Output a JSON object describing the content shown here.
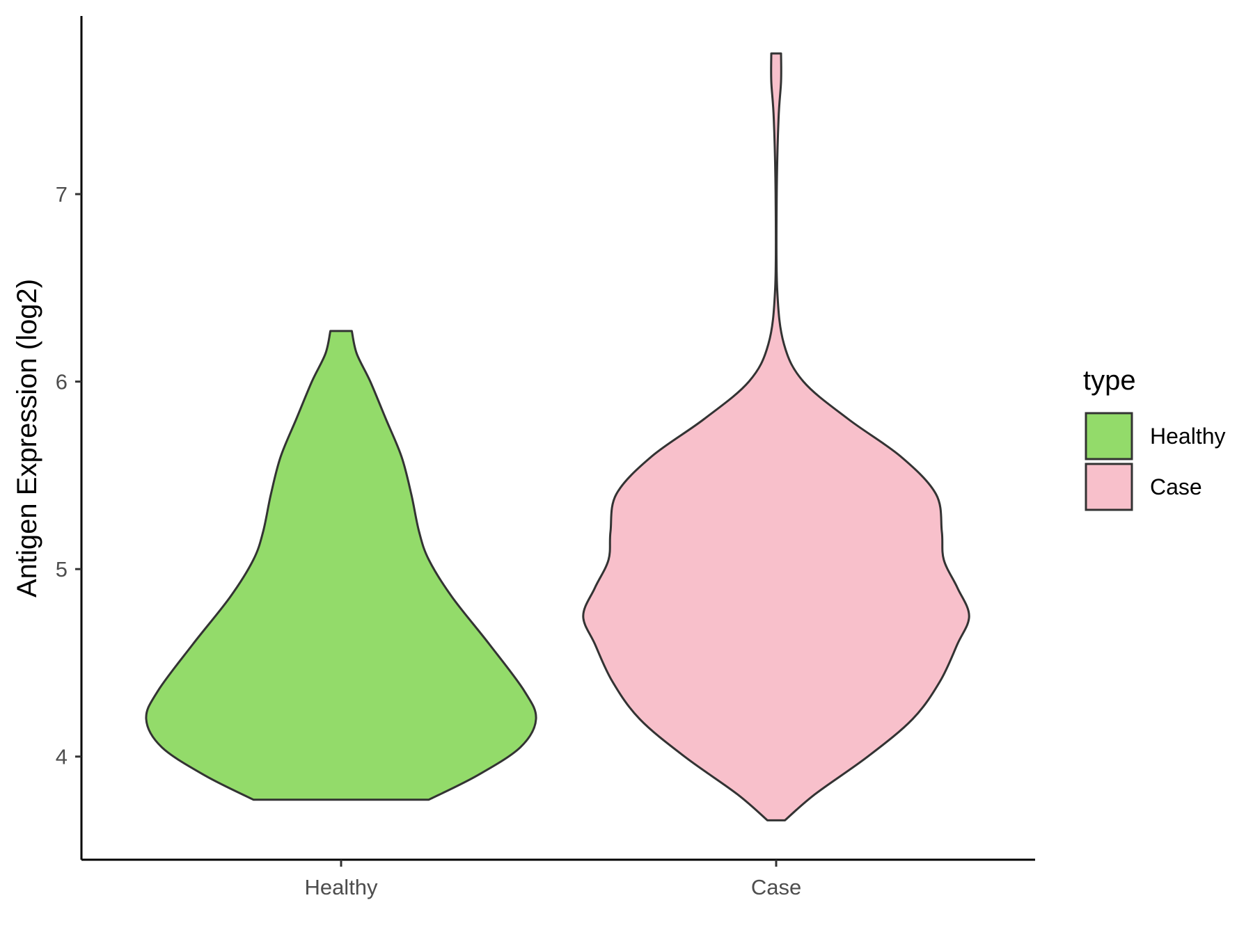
{
  "chart_data": {
    "type": "violin",
    "title": "",
    "xlabel": "",
    "ylabel": "Antigen Expression (log2)",
    "ylim": [
      3.45,
      7.95
    ],
    "yticks": [
      4,
      5,
      6,
      7
    ],
    "categories": [
      "Healthy",
      "Case"
    ],
    "grid": false,
    "legend": {
      "title": "type",
      "position": "right",
      "entries": [
        {
          "label": "Healthy",
          "color": "#93DB6A"
        },
        {
          "label": "Case",
          "color": "#F8C0CB"
        }
      ]
    },
    "series": [
      {
        "category": "Healthy",
        "color": "#93DB6A",
        "min": 3.77,
        "max": 6.27,
        "density_profile": [
          [
            3.77,
            0.45
          ],
          [
            3.9,
            0.7
          ],
          [
            4.05,
            0.92
          ],
          [
            4.2,
            1.0
          ],
          [
            4.35,
            0.94
          ],
          [
            4.6,
            0.76
          ],
          [
            4.85,
            0.57
          ],
          [
            5.05,
            0.45
          ],
          [
            5.2,
            0.4
          ],
          [
            5.4,
            0.36
          ],
          [
            5.6,
            0.31
          ],
          [
            5.8,
            0.23
          ],
          [
            6.0,
            0.15
          ],
          [
            6.15,
            0.08
          ],
          [
            6.27,
            0.055
          ]
        ]
      },
      {
        "category": "Case",
        "color": "#F8C0CB",
        "min": 3.66,
        "max": 7.75,
        "density_profile": [
          [
            3.66,
            0.045
          ],
          [
            3.8,
            0.2
          ],
          [
            4.0,
            0.47
          ],
          [
            4.2,
            0.7
          ],
          [
            4.4,
            0.84
          ],
          [
            4.6,
            0.93
          ],
          [
            4.75,
            0.99
          ],
          [
            4.9,
            0.93
          ],
          [
            5.05,
            0.86
          ],
          [
            5.2,
            0.85
          ],
          [
            5.4,
            0.82
          ],
          [
            5.6,
            0.64
          ],
          [
            5.8,
            0.37
          ],
          [
            6.0,
            0.14
          ],
          [
            6.2,
            0.04
          ],
          [
            6.5,
            0.005
          ],
          [
            7.0,
            0.003
          ],
          [
            7.4,
            0.012
          ],
          [
            7.6,
            0.025
          ],
          [
            7.75,
            0.025
          ]
        ]
      }
    ]
  }
}
